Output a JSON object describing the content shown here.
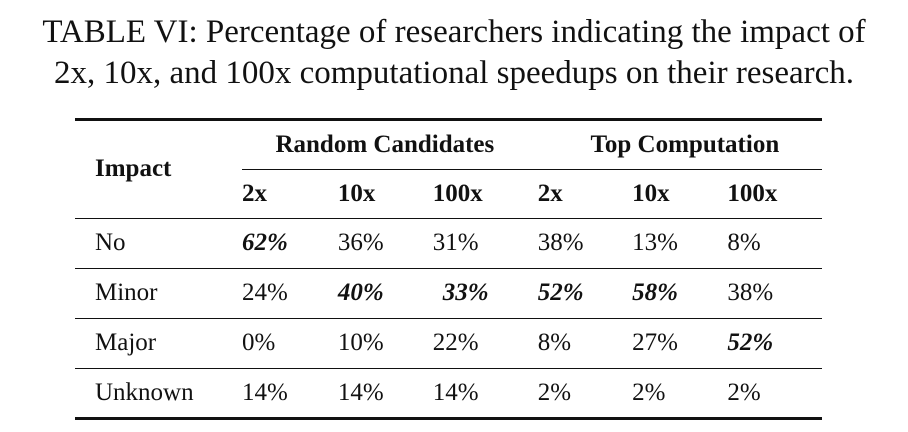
{
  "caption": {
    "line1": "TABLE VI: Percentage of researchers indicating the impact of",
    "line2": "2x, 10x, and 100x computational speedups on their research."
  },
  "table": {
    "row_header": "Impact",
    "groups": [
      "Random Candidates",
      "Top Computation"
    ],
    "subheaders": [
      "2x",
      "10x",
      "100x",
      "2x",
      "10x",
      "100x"
    ],
    "rows": [
      {
        "label": "No",
        "values": [
          "62%",
          "36%",
          "31%",
          "38%",
          "13%",
          "8%"
        ],
        "bold": [
          true,
          false,
          false,
          false,
          false,
          false
        ]
      },
      {
        "label": "Minor",
        "values": [
          "24%",
          "40%",
          "33%",
          "52%",
          "58%",
          "38%"
        ],
        "bold": [
          false,
          true,
          true,
          true,
          true,
          false
        ]
      },
      {
        "label": "Major",
        "values": [
          "0%",
          "10%",
          "22%",
          "8%",
          "27%",
          "52%"
        ],
        "bold": [
          false,
          false,
          false,
          false,
          false,
          true
        ]
      },
      {
        "label": "Unknown",
        "values": [
          "14%",
          "14%",
          "14%",
          "2%",
          "2%",
          "2%"
        ],
        "bold": [
          false,
          false,
          false,
          false,
          false,
          false
        ]
      }
    ]
  }
}
